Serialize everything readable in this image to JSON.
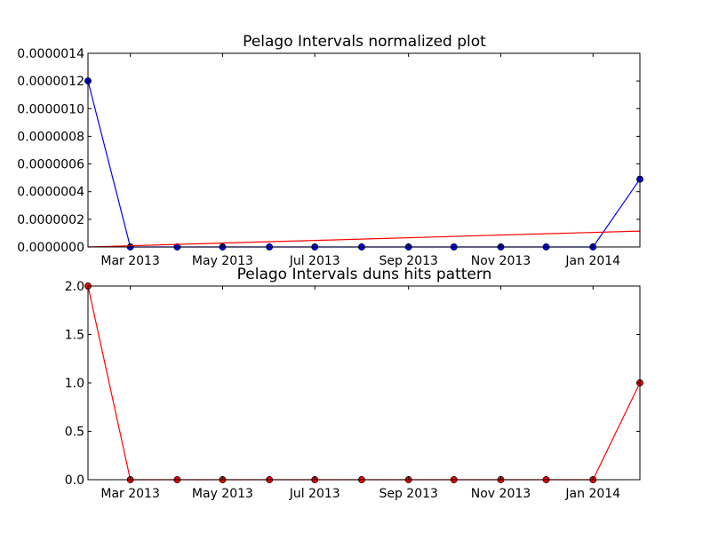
{
  "colors": {
    "background": "#ffffff",
    "blue": "#0000ff",
    "red": "#ff0000",
    "marker_edge": "#000000"
  },
  "chart_data": [
    {
      "type": "line",
      "title": "Pelago Intervals normalized plot",
      "xlabel": "",
      "ylabel": "",
      "grid": false,
      "legend": "none",
      "x": [
        "2013-02-01",
        "2013-03-01",
        "2013-04-01",
        "2013-05-01",
        "2013-06-01",
        "2013-07-01",
        "2013-08-01",
        "2013-09-01",
        "2013-10-01",
        "2013-11-01",
        "2013-12-01",
        "2014-01-01",
        "2014-02-01"
      ],
      "xlim": [
        "2013-02-01",
        "2014-02-01"
      ],
      "ylim": [
        0,
        1.4e-06
      ],
      "x_ticks": [
        "2013-03-01",
        "2013-05-01",
        "2013-07-01",
        "2013-09-01",
        "2013-11-01",
        "2014-01-01"
      ],
      "x_tick_labels": [
        "Mar 2013",
        "May 2013",
        "Jul 2013",
        "Sep 2013",
        "Nov 2013",
        "Jan 2014"
      ],
      "y_ticks": [
        0,
        2e-07,
        4e-07,
        6e-07,
        8e-07,
        1e-06,
        1.2e-06,
        1.4e-06
      ],
      "y_tick_labels": [
        "0.0000000",
        "0.0000002",
        "0.0000004",
        "0.0000006",
        "0.0000008",
        "0.0000010",
        "0.0000012",
        "0.0000014"
      ],
      "series": [
        {
          "color": "#0000ff",
          "marker": "circle",
          "values": [
            1.2e-06,
            0,
            0,
            0,
            0,
            0,
            0,
            0,
            0,
            0,
            0,
            0,
            4.9e-07
          ]
        },
        {
          "color": "#ff0000",
          "marker": "none",
          "points": [
            [
              "2013-02-01",
              0
            ],
            [
              "2014-02-01",
              1.15e-07
            ]
          ]
        }
      ]
    },
    {
      "type": "line",
      "title": "Pelago Intervals duns hits pattern",
      "xlabel": "",
      "ylabel": "",
      "grid": false,
      "legend": "none",
      "x": [
        "2013-02-01",
        "2013-03-01",
        "2013-04-01",
        "2013-05-01",
        "2013-06-01",
        "2013-07-01",
        "2013-08-01",
        "2013-09-01",
        "2013-10-01",
        "2013-11-01",
        "2013-12-01",
        "2014-01-01",
        "2014-02-01"
      ],
      "xlim": [
        "2013-02-01",
        "2014-02-01"
      ],
      "ylim": [
        0,
        2.0
      ],
      "x_ticks": [
        "2013-03-01",
        "2013-05-01",
        "2013-07-01",
        "2013-09-01",
        "2013-11-01",
        "2014-01-01"
      ],
      "x_tick_labels": [
        "Mar 2013",
        "May 2013",
        "Jul 2013",
        "Sep 2013",
        "Nov 2013",
        "Jan 2014"
      ],
      "y_ticks": [
        0,
        0.5,
        1.0,
        1.5,
        2.0
      ],
      "y_tick_labels": [
        "0.0",
        "0.5",
        "1.0",
        "1.5",
        "2.0"
      ],
      "series": [
        {
          "color": "#ff0000",
          "marker": "circle",
          "values": [
            2,
            0,
            0,
            0,
            0,
            0,
            0,
            0,
            0,
            0,
            0,
            0,
            1
          ]
        }
      ]
    }
  ]
}
